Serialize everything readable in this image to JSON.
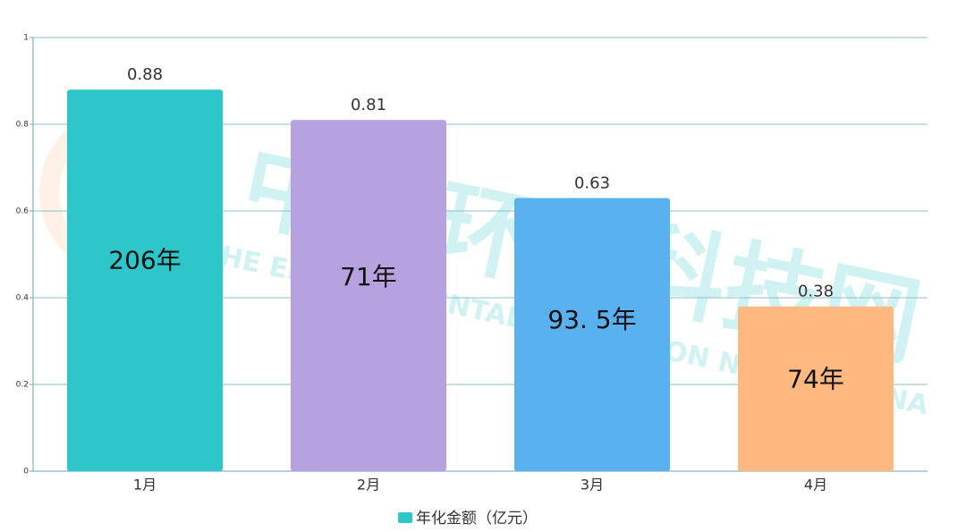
{
  "chart_data": {
    "type": "bar",
    "categories": [
      "1月",
      "2月",
      "3月",
      "4月"
    ],
    "series": [
      {
        "name": "年化金额（亿元）",
        "color": "#2ec7c9",
        "values": [
          0.88,
          0.81,
          0.63,
          0.38
        ],
        "colors": [
          "#2ec7c9",
          "#b6a2de",
          "#5ab1ef",
          "#ffb980"
        ],
        "inner_labels": [
          "206年",
          "71年",
          "93. 5年",
          "74年"
        ]
      }
    ],
    "ylim": [
      0,
      1
    ],
    "yticks": [
      0,
      0.2,
      0.4,
      0.6,
      0.8,
      1
    ],
    "grid": true,
    "watermark": {
      "title": "中国环卫科技网",
      "subtitle": "THE ENVIRONMENTAL SANITATION NET OF CHINA"
    }
  }
}
